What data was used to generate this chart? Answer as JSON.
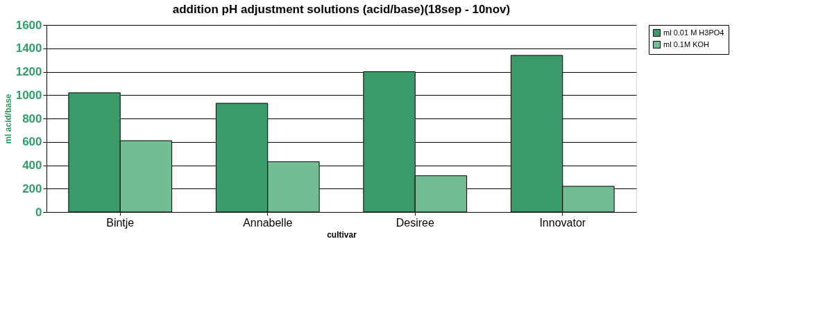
{
  "chart_data": {
    "type": "bar",
    "title": "addition pH adjustment solutions (acid/base)(18sep - 10nov)",
    "xlabel": "cultivar",
    "ylabel": "ml acid/base",
    "categories": [
      "Bintje",
      "Annabelle",
      "Desiree",
      "Innovator"
    ],
    "series": [
      {
        "name": "ml 0.01 M H3PO4",
        "color": "#3a9a6a",
        "values": [
          1020,
          930,
          1200,
          1340
        ]
      },
      {
        "name": "ml 0.1M KOH",
        "color": "#72bd94",
        "values": [
          610,
          430,
          310,
          220
        ]
      }
    ],
    "ylim": [
      0,
      1600
    ],
    "yticks": [
      0,
      200,
      400,
      600,
      800,
      1000,
      1200,
      1400,
      1600
    ],
    "grid": "y",
    "legend": "right"
  }
}
